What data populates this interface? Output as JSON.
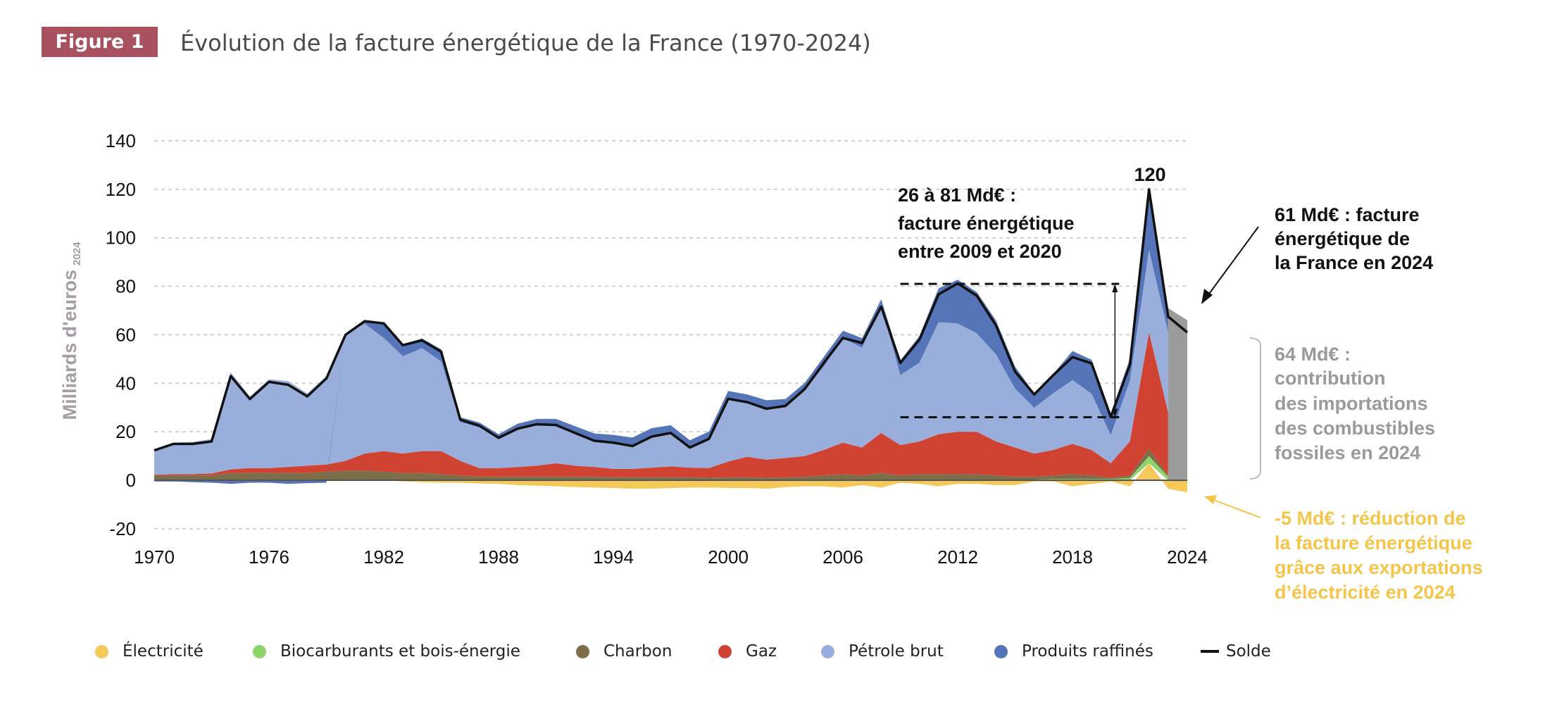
{
  "figure": {
    "badge": "Figure 1",
    "title": "Évolution de la facture énergétique de la France (1970-2024)"
  },
  "annotations": {
    "range_line1": "26 à 81 Md€ :",
    "range_line2": "facture énergétique",
    "range_line3": "entre 2009 et 2020",
    "peak": "120",
    "total_line1": "61 Md€ : facture",
    "total_line2": "énergétique de",
    "total_line3": "la France en 2024",
    "fossil_line1": "64 Md€ :",
    "fossil_line2": "contribution",
    "fossil_line3": "des importations",
    "fossil_line4": "des combustibles",
    "fossil_line5": "fossiles en 2024",
    "elec_line1": "-5 Md€ : réduction de",
    "elec_line2": "la facture énergétique",
    "elec_line3": "grâce aux exportations",
    "elec_line4": "d’électricité en 2024",
    "colors": {
      "total": "#111111",
      "fossil": "#9a9a9a",
      "elec": "#f5c54a"
    }
  },
  "chart_data": {
    "type": "area",
    "title": "Évolution de la facture énergétique de la France (1970-2024)",
    "ylabel": "Milliards d'euros",
    "ylabel_sub": "2024",
    "xlabel": "",
    "ylim": [
      -20,
      140
    ],
    "xlim": [
      1970,
      2024
    ],
    "yticks": [
      "-20",
      "0",
      "20",
      "40",
      "60",
      "80",
      "100",
      "120",
      "140"
    ],
    "xticks": [
      "1970",
      "1976",
      "1982",
      "1988",
      "1994",
      "2000",
      "2006",
      "2012",
      "2018",
      "2024"
    ],
    "grid": true,
    "legend_position": "bottom",
    "x": [
      1970,
      1971,
      1972,
      1973,
      1974,
      1975,
      1976,
      1977,
      1978,
      1979,
      1980,
      1981,
      1982,
      1983,
      1984,
      1985,
      1986,
      1987,
      1988,
      1989,
      1990,
      1991,
      1992,
      1993,
      1994,
      1995,
      1996,
      1997,
      1998,
      1999,
      2000,
      2001,
      2002,
      2003,
      2004,
      2005,
      2006,
      2007,
      2008,
      2009,
      2010,
      2011,
      2012,
      2013,
      2014,
      2015,
      2016,
      2017,
      2018,
      2019,
      2020,
      2021,
      2022,
      2023,
      2024
    ],
    "series": [
      {
        "name": "Électricité",
        "color": "#f5c85a",
        "values": [
          0,
          0,
          0,
          0,
          0,
          0,
          0,
          0,
          0,
          0,
          0,
          0,
          0,
          -0.5,
          -0.8,
          -1,
          -1,
          -1.3,
          -1.5,
          -2,
          -2.2,
          -2.5,
          -2.8,
          -3,
          -3.2,
          -3.5,
          -3.5,
          -3.2,
          -3,
          -3,
          -3.2,
          -3.2,
          -3.5,
          -2.8,
          -2.5,
          -2.5,
          -3,
          -2,
          -3,
          -1,
          -1.5,
          -2.5,
          -1.5,
          -1.5,
          -2,
          -2,
          -0.5,
          -0.5,
          -2.5,
          -1.5,
          -0.5,
          -2.5,
          7,
          -3.5,
          -5
        ]
      },
      {
        "name": "Biocarburants et bois-énergie",
        "color": "#8fd46a",
        "values": [
          0,
          0,
          0,
          0,
          0,
          0,
          0,
          0,
          0,
          0,
          0,
          0,
          0,
          0,
          0,
          0,
          0,
          0,
          0,
          0,
          0,
          0,
          0,
          0,
          0,
          0,
          0,
          0,
          0,
          0,
          0,
          0,
          0,
          0,
          0,
          0,
          0,
          0,
          0,
          0,
          0,
          0,
          0,
          0,
          0,
          0,
          0.3,
          0.5,
          0.5,
          0.5,
          0.5,
          1,
          3,
          1.5,
          null
        ]
      },
      {
        "name": "Charbon",
        "color": "#7d6e4a",
        "values": [
          2,
          2,
          2,
          2,
          3,
          3,
          3,
          3,
          3,
          3.5,
          4,
          4,
          3.5,
          3,
          3,
          2.5,
          2,
          1.5,
          1.5,
          1.5,
          1.5,
          1.5,
          1.5,
          1.5,
          1.2,
          1.2,
          1.2,
          1.2,
          1.2,
          1,
          1.2,
          1.2,
          1,
          1.2,
          1.5,
          2,
          2.5,
          2,
          3,
          2,
          2.5,
          2.5,
          2.5,
          2.5,
          2,
          1.5,
          1.2,
          1.5,
          2,
          1.5,
          0.5,
          1,
          3,
          0.5,
          null
        ]
      },
      {
        "name": "Gaz",
        "color": "#d04332",
        "values": [
          0.3,
          0.5,
          0.5,
          0.8,
          1.5,
          2,
          2,
          2.5,
          3,
          3,
          4,
          7,
          8.5,
          8,
          9,
          9.5,
          6,
          3.5,
          3.5,
          4,
          4.5,
          5.5,
          4.5,
          4,
          3.5,
          3.5,
          4,
          4.5,
          4,
          4,
          6.5,
          8.5,
          7.5,
          8,
          8.5,
          10.5,
          13,
          11.5,
          16.5,
          12.5,
          13.5,
          16.5,
          17.5,
          17.5,
          14,
          12,
          9.5,
          10.5,
          12.5,
          10.5,
          6,
          14,
          48,
          26,
          null
        ]
      },
      {
        "name": "Pétrole brut",
        "color": "#9aaedb",
        "values": [
          10.5,
          13,
          13.3,
          14.2,
          40,
          29.5,
          36.6,
          35.4,
          29.8,
          36.5,
          52,
          53.6,
          46.7,
          40.2,
          42.5,
          37,
          16,
          16.8,
          12.5,
          15.8,
          16.8,
          15.3,
          13.8,
          10.8,
          10.5,
          9.4,
          12.8,
          13.5,
          8.3,
          12.1,
          25.6,
          22.2,
          20.5,
          20.8,
          27.1,
          34.4,
          43.2,
          41.1,
          53.1,
          28.9,
          32.5,
          46.2,
          44.7,
          40.6,
          35.9,
          24.3,
          18.9,
          23.4,
          26.3,
          23.2,
          11.6,
          25.1,
          34,
          33,
          null
        ]
      },
      {
        "name": "Produits raffinés",
        "color": "#5575b8",
        "values": [
          -0.5,
          -0.5,
          -0.8,
          -1,
          -1.5,
          -1,
          -1,
          -1.5,
          -1.2,
          -1,
          0,
          1,
          6,
          5,
          4,
          5,
          2,
          2,
          1.5,
          2,
          2.5,
          3,
          2.5,
          3,
          3.5,
          3.5,
          3.5,
          3.5,
          3,
          3,
          3.5,
          3.5,
          4,
          3.5,
          3,
          4,
          3,
          4,
          2,
          6,
          11,
          14,
          18,
          17,
          14,
          9,
          6,
          8,
          12,
          14,
          9,
          9,
          25,
          10,
          null
        ]
      }
    ],
    "aggregate_2024": {
      "color": "#9b9b9b",
      "values": {
        "2023": 71,
        "2024": 66
      }
    },
    "solde": {
      "name": "Solde",
      "color": "#111111",
      "values": [
        12.3,
        15,
        15,
        16,
        43,
        33.5,
        40.6,
        39.4,
        34.6,
        42,
        60,
        65.6,
        64.7,
        55.7,
        57.7,
        53,
        25,
        22.5,
        17.5,
        21.3,
        23.1,
        22.8,
        19.5,
        16.3,
        15.5,
        14.1,
        18,
        19.5,
        13.5,
        17.1,
        33.6,
        32.2,
        29.5,
        30.7,
        37.6,
        48.4,
        58.7,
        56.6,
        71.6,
        48.4,
        58,
        76.7,
        81.2,
        76.1,
        63.9,
        44.8,
        35.4,
        43.4,
        50.8,
        48.2,
        26.1,
        47.6,
        120,
        67.5,
        61
      ]
    },
    "range_markers": {
      "from_year": 2009,
      "to_year": 2020,
      "low": 26,
      "high": 81
    }
  }
}
